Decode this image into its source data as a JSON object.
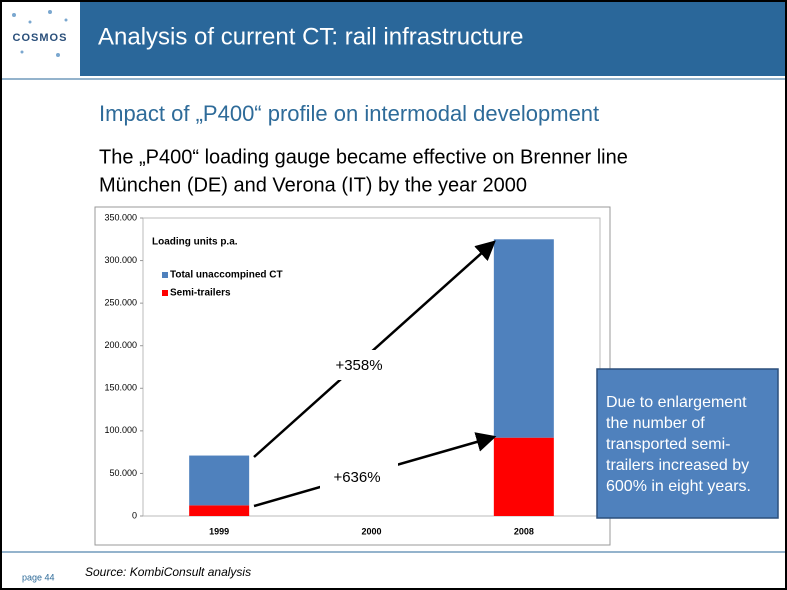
{
  "header": {
    "logo": "COSMOS",
    "title": "Analysis of current CT: rail infrastructure"
  },
  "subtitle": "Impact of „P400“ profile on intermodal development",
  "body": [
    "The „P400“ loading gauge became effective on Brenner line",
    "München (DE) and Verona (IT) by the year 2000"
  ],
  "chart_data": {
    "type": "stacked-bar",
    "title": "Loading units p.a.",
    "categories": [
      "1999",
      "2000",
      "2008"
    ],
    "series": [
      {
        "name": "Total unaccompined CT",
        "color": "#4f81bd",
        "values": [
          58500,
          null,
          233000
        ]
      },
      {
        "name": "Semi-trailers",
        "color": "#ff0000",
        "values": [
          12500,
          null,
          92000
        ]
      }
    ],
    "ylim": [
      0,
      350000
    ],
    "yticks": [
      0,
      {
        "value": 50000,
        "label": "50.000"
      },
      {
        "value": 100000,
        "label": "100.000"
      },
      {
        "value": 150000,
        "label": "150.000"
      },
      {
        "value": 200000,
        "label": "200.000"
      },
      {
        "value": 250000,
        "label": "250.000"
      },
      {
        "value": 300000,
        "label": "300.000"
      },
      {
        "value": 350000,
        "label": "350.000"
      }
    ],
    "grid": false,
    "annotations": [
      "+358%",
      "+636%"
    ]
  },
  "callout": [
    "Due to enlargement",
    "the number of",
    "transported semi-",
    "trailers increased by",
    "600% in eight years."
  ],
  "footer": {
    "page": "page 44",
    "source": "Source: KombiConsult analysis"
  }
}
